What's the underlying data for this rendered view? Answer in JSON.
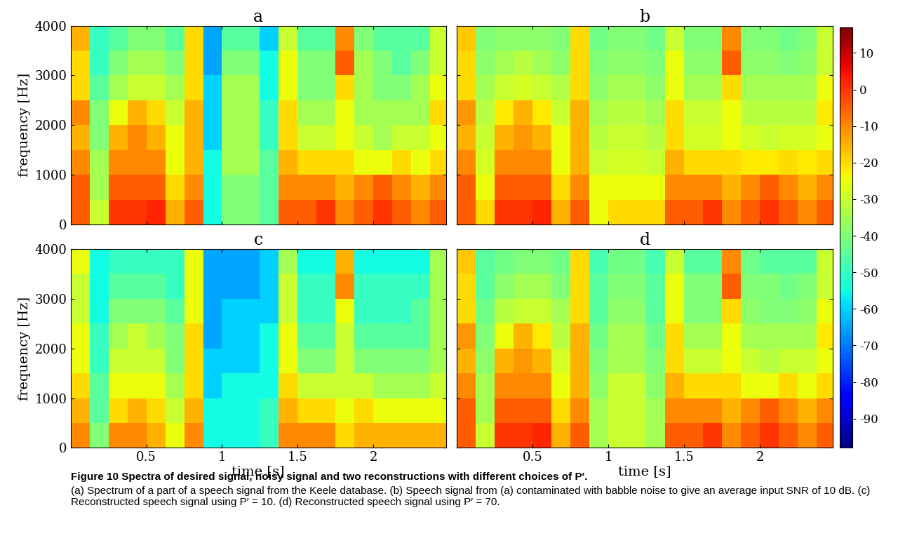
{
  "chart_data": [
    {
      "type": "heatmap",
      "title": "a",
      "y_label": "frequency [Hz]",
      "tick_labels": "y",
      "xlim": [
        0,
        2.48
      ],
      "ylim": [
        0,
        4000
      ],
      "xticks": [
        0.5,
        1,
        1.5,
        2
      ],
      "yticks": [
        0,
        1000,
        2000,
        3000,
        4000
      ],
      "time_edges": [
        0,
        0.125,
        0.25,
        0.375,
        0.5,
        0.625,
        0.75,
        0.875,
        1,
        1.125,
        1.25,
        1.375,
        1.5,
        1.625,
        1.75,
        1.875,
        2,
        2.125,
        2.25,
        2.375,
        2.5
      ],
      "frequency_edges": [
        0,
        500,
        1000,
        1500,
        2000,
        2500,
        3000,
        3500,
        4000
      ],
      "cells": [
        [
          -5,
          -30,
          0,
          0,
          2,
          -15,
          -5,
          -55,
          -40,
          -40,
          -45,
          -5,
          -5,
          0,
          -10,
          -5,
          0,
          -5,
          -10,
          -5
        ],
        [
          -5,
          -35,
          -5,
          -5,
          -5,
          -20,
          -10,
          -55,
          -40,
          -40,
          -45,
          -10,
          -10,
          -10,
          -15,
          -10,
          -5,
          -10,
          -15,
          -10
        ],
        [
          -10,
          -35,
          -10,
          -10,
          -10,
          -25,
          -15,
          -55,
          -35,
          -35,
          -45,
          -15,
          -20,
          -20,
          -20,
          -25,
          -25,
          -20,
          -25,
          -20
        ],
        [
          -15,
          -40,
          -15,
          -10,
          -15,
          -25,
          -15,
          -60,
          -35,
          -35,
          -50,
          -20,
          -30,
          -30,
          -25,
          -30,
          -35,
          -30,
          -30,
          -25
        ],
        [
          -10,
          -40,
          -25,
          -15,
          -20,
          -30,
          -15,
          -60,
          -35,
          -35,
          -50,
          -20,
          -35,
          -35,
          -25,
          -35,
          -35,
          -35,
          -35,
          -20
        ],
        [
          -20,
          -45,
          -35,
          -30,
          -30,
          -35,
          -20,
          -60,
          -35,
          -35,
          -55,
          -25,
          -40,
          -40,
          -20,
          -35,
          -40,
          -40,
          -35,
          -25
        ],
        [
          -20,
          -50,
          -40,
          -35,
          -35,
          -40,
          -20,
          -65,
          -40,
          -40,
          -55,
          -25,
          -40,
          -40,
          -5,
          -35,
          -40,
          -45,
          -40,
          -30
        ],
        [
          -15,
          -50,
          -45,
          -40,
          -40,
          -45,
          -20,
          -65,
          -45,
          -45,
          -60,
          -30,
          -45,
          -45,
          -10,
          -40,
          -45,
          -45,
          -45,
          -30
        ]
      ]
    },
    {
      "type": "heatmap",
      "title": "b",
      "tick_labels": false,
      "xlim": [
        0,
        2.48
      ],
      "ylim": [
        0,
        4000
      ],
      "xticks": [
        0.5,
        1,
        1.5,
        2
      ],
      "yticks": [
        0,
        1000,
        2000,
        3000,
        4000
      ],
      "time_edges": [
        0,
        0.125,
        0.25,
        0.375,
        0.5,
        0.625,
        0.75,
        0.875,
        1,
        1.125,
        1.25,
        1.375,
        1.5,
        1.625,
        1.75,
        1.875,
        2,
        2.125,
        2.25,
        2.375,
        2.5
      ],
      "frequency_edges": [
        0,
        500,
        1000,
        1500,
        2000,
        2500,
        3000,
        3500,
        4000
      ],
      "cells": [
        [
          -5,
          -20,
          0,
          0,
          2,
          -15,
          -5,
          -25,
          -20,
          -20,
          -20,
          -5,
          -5,
          0,
          -10,
          -5,
          0,
          -5,
          -10,
          -5
        ],
        [
          -5,
          -25,
          -5,
          -5,
          -5,
          -20,
          -10,
          -25,
          -25,
          -25,
          -25,
          -10,
          -10,
          -10,
          -15,
          -10,
          -5,
          -10,
          -15,
          -10
        ],
        [
          -10,
          -28,
          -10,
          -10,
          -10,
          -25,
          -15,
          -30,
          -28,
          -28,
          -30,
          -15,
          -20,
          -20,
          -20,
          -22,
          -22,
          -20,
          -22,
          -20
        ],
        [
          -15,
          -30,
          -15,
          -12,
          -15,
          -25,
          -15,
          -32,
          -30,
          -30,
          -32,
          -20,
          -28,
          -28,
          -25,
          -28,
          -30,
          -28,
          -28,
          -25
        ],
        [
          -12,
          -32,
          -22,
          -15,
          -22,
          -30,
          -15,
          -35,
          -32,
          -32,
          -35,
          -20,
          -30,
          -30,
          -25,
          -32,
          -32,
          -32,
          -32,
          -22
        ],
        [
          -20,
          -35,
          -30,
          -28,
          -30,
          -33,
          -20,
          -38,
          -35,
          -35,
          -38,
          -25,
          -35,
          -35,
          -20,
          -35,
          -35,
          -35,
          -35,
          -25
        ],
        [
          -20,
          -38,
          -35,
          -32,
          -35,
          -38,
          -20,
          -40,
          -38,
          -38,
          -40,
          -25,
          -38,
          -38,
          -5,
          -38,
          -38,
          -40,
          -38,
          -30
        ],
        [
          -18,
          -40,
          -38,
          -38,
          -38,
          -40,
          -20,
          -42,
          -40,
          -40,
          -42,
          -30,
          -40,
          -40,
          -10,
          -40,
          -40,
          -42,
          -40,
          -30
        ]
      ]
    },
    {
      "type": "heatmap",
      "title": "c",
      "x_label": "time [s]",
      "y_label": "frequency [Hz]",
      "tick_labels": true,
      "xlim": [
        0,
        2.48
      ],
      "ylim": [
        0,
        4000
      ],
      "xticks": [
        0.5,
        1,
        1.5,
        2
      ],
      "yticks": [
        0,
        1000,
        2000,
        3000,
        4000
      ],
      "time_edges": [
        0,
        0.125,
        0.25,
        0.375,
        0.5,
        0.625,
        0.75,
        0.875,
        1,
        1.125,
        1.25,
        1.375,
        1.5,
        1.625,
        1.75,
        1.875,
        2,
        2.125,
        2.25,
        2.375,
        2.5
      ],
      "frequency_edges": [
        0,
        500,
        1000,
        1500,
        2000,
        2500,
        3000,
        3500,
        4000
      ],
      "cells": [
        [
          -10,
          -40,
          -10,
          -10,
          -15,
          -25,
          -10,
          -55,
          -55,
          -55,
          -50,
          -10,
          -10,
          -10,
          -20,
          -15,
          -15,
          -15,
          -15,
          -15
        ],
        [
          -15,
          -45,
          -20,
          -15,
          -20,
          -30,
          -15,
          -55,
          -55,
          -55,
          -50,
          -15,
          -20,
          -20,
          -25,
          -20,
          -25,
          -25,
          -25,
          -25
        ],
        [
          -20,
          -45,
          -25,
          -25,
          -25,
          -35,
          -20,
          -60,
          -55,
          -55,
          -55,
          -20,
          -30,
          -30,
          -30,
          -30,
          -35,
          -35,
          -35,
          -30
        ],
        [
          -25,
          -50,
          -30,
          -30,
          -30,
          -40,
          -20,
          -60,
          -60,
          -60,
          -55,
          -25,
          -40,
          -40,
          -30,
          -40,
          -40,
          -40,
          -40,
          -35
        ],
        [
          -25,
          -50,
          -35,
          -30,
          -35,
          -40,
          -20,
          -65,
          -60,
          -60,
          -55,
          -25,
          -45,
          -45,
          -30,
          -45,
          -45,
          -45,
          -45,
          -35
        ],
        [
          -30,
          -55,
          -40,
          -40,
          -40,
          -45,
          -25,
          -65,
          -60,
          -60,
          -60,
          -30,
          -50,
          -50,
          -25,
          -50,
          -50,
          -50,
          -45,
          -35
        ],
        [
          -30,
          -55,
          -45,
          -45,
          -45,
          -50,
          -25,
          -65,
          -65,
          -65,
          -60,
          -30,
          -50,
          -50,
          -10,
          -50,
          -50,
          -50,
          -50,
          -35
        ],
        [
          -25,
          -55,
          -50,
          -50,
          -50,
          -50,
          -25,
          -65,
          -65,
          -65,
          -60,
          -35,
          -55,
          -55,
          -15,
          -55,
          -55,
          -55,
          -55,
          -35
        ]
      ]
    },
    {
      "type": "heatmap",
      "title": "d",
      "x_label": "time [s]",
      "tick_labels": "x",
      "xlim": [
        0,
        2.48
      ],
      "ylim": [
        0,
        4000
      ],
      "xticks": [
        0.5,
        1,
        1.5,
        2
      ],
      "yticks": [
        0,
        1000,
        2000,
        3000,
        4000
      ],
      "time_edges": [
        0,
        0.125,
        0.25,
        0.375,
        0.5,
        0.625,
        0.75,
        0.875,
        1,
        1.125,
        1.25,
        1.375,
        1.5,
        1.625,
        1.75,
        1.875,
        2,
        2.125,
        2.25,
        2.375,
        2.5
      ],
      "frequency_edges": [
        0,
        500,
        1000,
        1500,
        2000,
        2500,
        3000,
        3500,
        4000
      ],
      "cells": [
        [
          -5,
          -30,
          0,
          0,
          2,
          -15,
          -5,
          -35,
          -30,
          -30,
          -35,
          -5,
          -5,
          0,
          -10,
          -5,
          0,
          -5,
          -10,
          -5
        ],
        [
          -5,
          -35,
          -5,
          -5,
          -5,
          -20,
          -10,
          -35,
          -30,
          -30,
          -35,
          -10,
          -10,
          -10,
          -15,
          -10,
          -5,
          -10,
          -15,
          -10
        ],
        [
          -10,
          -35,
          -10,
          -10,
          -10,
          -25,
          -15,
          -38,
          -30,
          -30,
          -38,
          -15,
          -20,
          -20,
          -20,
          -25,
          -25,
          -20,
          -25,
          -20
        ],
        [
          -15,
          -38,
          -15,
          -12,
          -15,
          -28,
          -15,
          -40,
          -35,
          -35,
          -40,
          -20,
          -30,
          -30,
          -25,
          -30,
          -32,
          -30,
          -30,
          -25
        ],
        [
          -12,
          -40,
          -25,
          -15,
          -22,
          -32,
          -15,
          -42,
          -35,
          -35,
          -42,
          -20,
          -35,
          -35,
          -25,
          -35,
          -35,
          -35,
          -35,
          -22
        ],
        [
          -20,
          -42,
          -32,
          -30,
          -30,
          -35,
          -20,
          -45,
          -38,
          -38,
          -45,
          -25,
          -40,
          -40,
          -20,
          -38,
          -40,
          -40,
          -38,
          -25
        ],
        [
          -20,
          -45,
          -38,
          -35,
          -35,
          -40,
          -20,
          -45,
          -40,
          -40,
          -45,
          -25,
          -40,
          -40,
          -5,
          -40,
          -40,
          -42,
          -40,
          -30
        ],
        [
          -18,
          -45,
          -42,
          -40,
          -40,
          -42,
          -20,
          -48,
          -42,
          -42,
          -48,
          -30,
          -45,
          -45,
          -10,
          -42,
          -45,
          -45,
          -45,
          -30
        ]
      ]
    }
  ],
  "colorbar": {
    "color": "jet",
    "range": [
      -98,
      17
    ],
    "ticks": [
      10,
      0,
      -10,
      -20,
      -30,
      -40,
      -50,
      -60,
      -70,
      -80,
      -90
    ]
  },
  "caption": {
    "title": "Figure 10 Spectra of desired signal, noisy signal and two reconstructions with different choices of P′.",
    "text": "(a) Spectrum of a part of a speech signal from the Keele database. (b) Speech signal from (a) contaminated with babble noise to give an average input SNR of 10 dB. (c) Reconstructed speech signal using P′ = 10. (d) Reconstructed speech signal using P′ = 70."
  }
}
